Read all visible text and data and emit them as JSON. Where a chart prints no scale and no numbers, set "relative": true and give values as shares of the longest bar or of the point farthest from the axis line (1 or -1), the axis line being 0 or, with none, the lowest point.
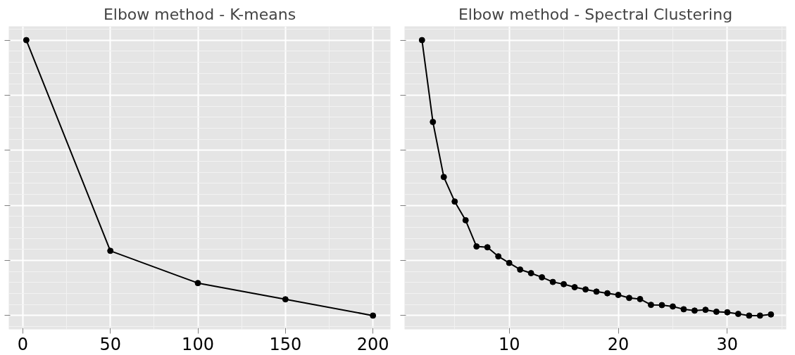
{
  "chart_data": [
    {
      "type": "line",
      "title": "Elbow method - K-means",
      "relative": true,
      "x": [
        2,
        50,
        100,
        150,
        200
      ],
      "series": [
        {
          "color": "#000000",
          "values": [
            1,
            0.235,
            0.118,
            0.059,
            0
          ]
        }
      ],
      "xlim": [
        -8,
        210
      ],
      "xticks": [
        0,
        50,
        100,
        150,
        200
      ],
      "grid": true,
      "tick_labels": "x",
      "marker": "circle",
      "line_style": "solid"
    },
    {
      "type": "line",
      "title": "Elbow method - Spectral Clustering",
      "relative": true,
      "x": [
        2,
        3,
        4,
        5,
        6,
        7,
        8,
        9,
        10,
        11,
        12,
        13,
        14,
        15,
        16,
        17,
        18,
        19,
        20,
        21,
        22,
        23,
        24,
        25,
        26,
        27,
        28,
        29,
        30,
        31,
        32,
        33,
        34
      ],
      "series": [
        {
          "color": "#000000",
          "values": [
            1,
            0.703,
            0.503,
            0.414,
            0.346,
            0.251,
            0.248,
            0.215,
            0.191,
            0.167,
            0.154,
            0.139,
            0.122,
            0.114,
            0.103,
            0.095,
            0.087,
            0.081,
            0.075,
            0.064,
            0.06,
            0.039,
            0.038,
            0.033,
            0.023,
            0.018,
            0.021,
            0.014,
            0.012,
            0.006,
            0,
            0,
            0.004
          ]
        }
      ],
      "xlim": [
        0.4,
        35.4
      ],
      "xticks": [
        10,
        20,
        30
      ],
      "grid": true,
      "tick_labels": "x",
      "marker": "circle",
      "line_style": "solid"
    }
  ]
}
